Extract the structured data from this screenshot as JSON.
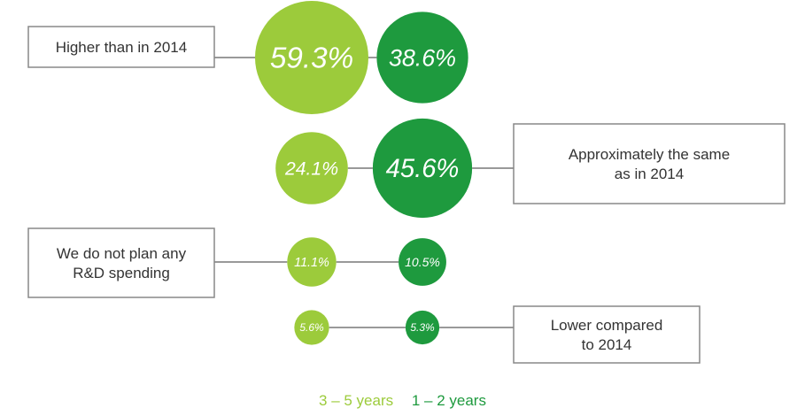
{
  "chart_data": {
    "type": "bubble",
    "title": "",
    "xlabel": "",
    "ylabel": "",
    "series": [
      {
        "name": "3 – 5 years",
        "color": "#9ccb3b",
        "values": [
          59.3,
          24.1,
          11.1,
          5.6
        ]
      },
      {
        "name": "1 – 2 years",
        "color": "#1e9a3e",
        "values": [
          38.6,
          45.6,
          10.5,
          5.3
        ]
      }
    ],
    "value_labels": [
      [
        "59.3%",
        "24.1%",
        "11.1%",
        "5.6%"
      ],
      [
        "38.6%",
        "45.6%",
        "10.5%",
        "5.3%"
      ]
    ],
    "categories": [
      {
        "label": [
          "Higher than in 2014"
        ],
        "side": "left"
      },
      {
        "label": [
          "Approximately the same",
          "as in 2014"
        ],
        "side": "right"
      },
      {
        "label": [
          "We do not plan any",
          "R&D spending"
        ],
        "side": "left"
      },
      {
        "label": [
          "Lower compared",
          "to 2014"
        ],
        "side": "right"
      }
    ]
  },
  "legend": {
    "item1": {
      "label": "3 – 5 years",
      "color": "#9ccb3b"
    },
    "item2": {
      "label": "1 – 2 years",
      "color": "#1e9a3e"
    }
  }
}
